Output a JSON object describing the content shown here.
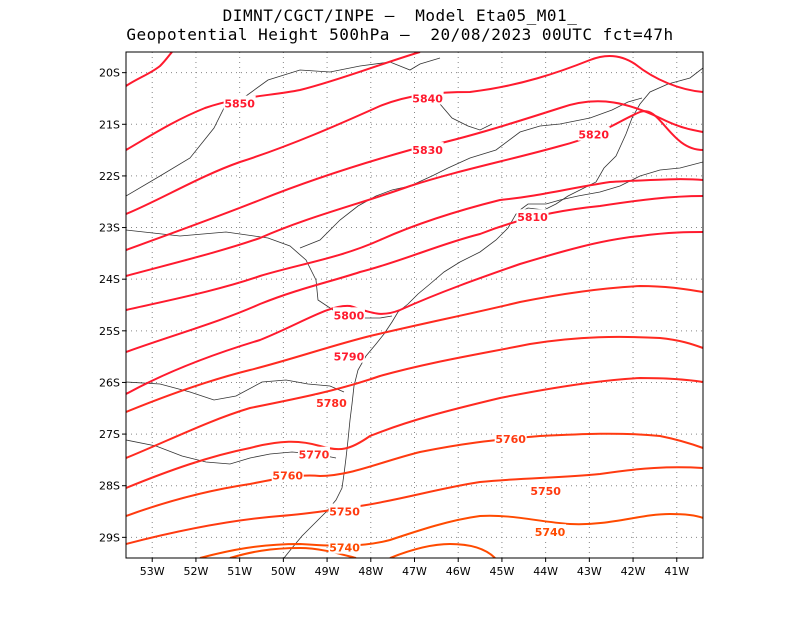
{
  "title": {
    "line1": "DIMNT/CGCT/INPE –  Model Eta05_M01_",
    "line2": "Geopotential Height 500hPa –  20/08/2023 00UTC fct=47h"
  },
  "colors": {
    "contour_high": "#ff1a2e",
    "contour_low": "#ff4a00",
    "coastline": "#000000",
    "grid": "#888888"
  },
  "map": {
    "lon_range": [
      -53.6,
      -40.4
    ],
    "lat_range": [
      -29.4,
      -19.6
    ],
    "lat_ticks": [
      {
        "value": -20,
        "label": "20S"
      },
      {
        "value": -21,
        "label": "21S"
      },
      {
        "value": -22,
        "label": "22S"
      },
      {
        "value": -23,
        "label": "23S"
      },
      {
        "value": -24,
        "label": "24S"
      },
      {
        "value": -25,
        "label": "25S"
      },
      {
        "value": -26,
        "label": "26S"
      },
      {
        "value": -27,
        "label": "27S"
      },
      {
        "value": -28,
        "label": "28S"
      },
      {
        "value": -29,
        "label": "29S"
      }
    ],
    "lon_ticks": [
      {
        "value": -53,
        "label": "53W"
      },
      {
        "value": -52,
        "label": "52W"
      },
      {
        "value": -51,
        "label": "51W"
      },
      {
        "value": -50,
        "label": "50W"
      },
      {
        "value": -49,
        "label": "49W"
      },
      {
        "value": -48,
        "label": "48W"
      },
      {
        "value": -47,
        "label": "47W"
      },
      {
        "value": -46,
        "label": "46W"
      },
      {
        "value": -45,
        "label": "45W"
      },
      {
        "value": -44,
        "label": "44W"
      },
      {
        "value": -43,
        "label": "43W"
      },
      {
        "value": -42,
        "label": "42W"
      },
      {
        "value": -41,
        "label": "41W"
      }
    ],
    "contour_labels": [
      {
        "text": "5850",
        "lon": -51.0,
        "lat": -20.6,
        "color": "#ff1a2e"
      },
      {
        "text": "5840",
        "lon": -46.7,
        "lat": -20.5,
        "color": "#ff1a2e"
      },
      {
        "text": "5830",
        "lon": -46.7,
        "lat": -21.5,
        "color": "#ff1a2e"
      },
      {
        "text": "5820",
        "lon": -42.9,
        "lat": -21.2,
        "color": "#ff1a2e"
      },
      {
        "text": "5810",
        "lon": -44.3,
        "lat": -22.8,
        "color": "#ff1a2e"
      },
      {
        "text": "5800",
        "lon": -48.5,
        "lat": -24.7,
        "color": "#ff1a2e"
      },
      {
        "text": "5790",
        "lon": -48.5,
        "lat": -25.5,
        "color": "#ff1a2e"
      },
      {
        "text": "5780",
        "lon": -48.9,
        "lat": -26.4,
        "color": "#ff2a20"
      },
      {
        "text": "5770",
        "lon": -49.3,
        "lat": -27.4,
        "color": "#ff2a20"
      },
      {
        "text": "5760",
        "lon": -44.8,
        "lat": -27.1,
        "color": "#ff3a10"
      },
      {
        "text": "5760",
        "lon": -49.9,
        "lat": -27.8,
        "color": "#ff3a10"
      },
      {
        "text": "5750",
        "lon": -44.0,
        "lat": -28.1,
        "color": "#ff3a10"
      },
      {
        "text": "5750",
        "lon": -48.6,
        "lat": -28.5,
        "color": "#ff3a10"
      },
      {
        "text": "5740",
        "lon": -43.9,
        "lat": -28.9,
        "color": "#ff4a00"
      },
      {
        "text": "5740",
        "lon": -48.6,
        "lat": -29.2,
        "color": "#ff4a00"
      }
    ]
  }
}
